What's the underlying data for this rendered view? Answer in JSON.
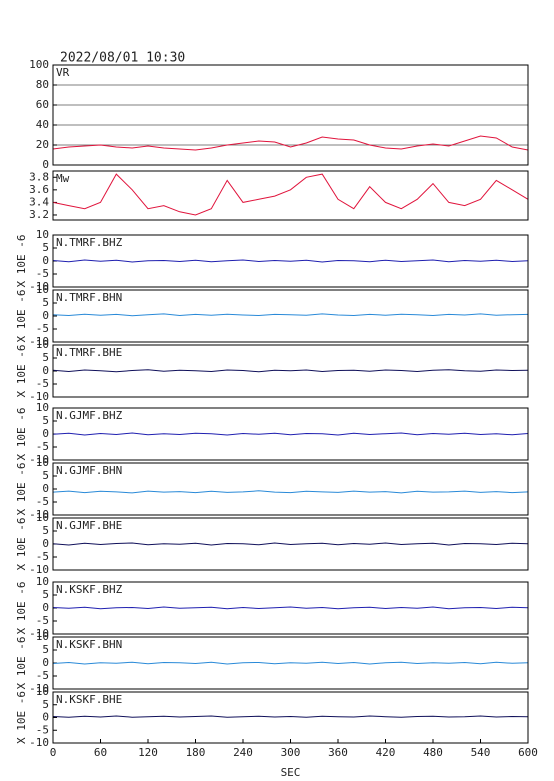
{
  "chart_data": [
    {
      "type": "line",
      "title": "2022/08/01 10:30",
      "label": "VR",
      "color": "#e0143c",
      "grid": true,
      "x": [
        0,
        20,
        40,
        60,
        80,
        100,
        120,
        140,
        160,
        180,
        200,
        220,
        240,
        260,
        280,
        300,
        320,
        340,
        360,
        380,
        400,
        420,
        440,
        460,
        480,
        500,
        520,
        540,
        560,
        580,
        600
      ],
      "values": [
        16,
        18,
        19,
        20,
        18,
        17,
        19,
        17,
        16,
        15,
        17,
        20,
        22,
        24,
        23,
        18,
        22,
        28,
        26,
        25,
        20,
        17,
        16,
        19,
        21,
        19,
        24,
        29,
        27,
        18,
        15
      ],
      "xlim": [
        0,
        600
      ],
      "ylim": [
        0,
        100
      ],
      "yticks": [
        0,
        20,
        40,
        60,
        80,
        100
      ]
    },
    {
      "type": "line",
      "label": "Mw",
      "color": "#e0143c",
      "x": [
        0,
        20,
        40,
        60,
        80,
        100,
        120,
        140,
        160,
        180,
        200,
        220,
        240,
        260,
        280,
        300,
        320,
        340,
        360,
        380,
        400,
        420,
        440,
        460,
        480,
        500,
        520,
        540,
        560,
        580,
        600
      ],
      "values": [
        3.4,
        3.35,
        3.3,
        3.4,
        3.85,
        3.6,
        3.3,
        3.35,
        3.25,
        3.2,
        3.3,
        3.75,
        3.4,
        3.45,
        3.5,
        3.6,
        3.8,
        3.85,
        3.45,
        3.3,
        3.65,
        3.4,
        3.3,
        3.45,
        3.7,
        3.4,
        3.35,
        3.45,
        3.75,
        3.6,
        3.45
      ],
      "xlim": [
        0,
        600
      ],
      "ylim": [
        3.12,
        3.9
      ],
      "yticks": [
        3.2,
        3.4,
        3.6,
        3.8
      ]
    },
    {
      "type": "line",
      "label": "N.TMRF.BHZ",
      "ylabel": "X 10E -6",
      "color": "#2020b0",
      "x": [
        0,
        20,
        40,
        60,
        80,
        100,
        120,
        140,
        160,
        180,
        200,
        220,
        240,
        260,
        280,
        300,
        320,
        340,
        360,
        380,
        400,
        420,
        440,
        460,
        480,
        500,
        520,
        540,
        560,
        580,
        600
      ],
      "values": [
        0.2,
        -0.3,
        0.4,
        -0.1,
        0.3,
        -0.4,
        0.1,
        0.2,
        -0.2,
        0.3,
        -0.3,
        0.1,
        0.4,
        -0.2,
        0.2,
        -0.1,
        0.3,
        -0.4,
        0.2,
        0.1,
        -0.3,
        0.3,
        -0.2,
        0.1,
        0.4,
        -0.3,
        0.2,
        -0.1,
        0.3,
        -0.2,
        0.1
      ],
      "xlim": [
        0,
        600
      ],
      "ylim": [
        -10,
        10
      ],
      "yticks": [
        -10,
        -5,
        0,
        5,
        10
      ]
    },
    {
      "type": "line",
      "label": "N.TMRF.BHN",
      "ylabel": "X 10E -6",
      "color": "#2a8ad8",
      "x": [
        0,
        20,
        40,
        60,
        80,
        100,
        120,
        140,
        160,
        180,
        200,
        220,
        240,
        260,
        280,
        300,
        320,
        340,
        360,
        380,
        400,
        420,
        440,
        460,
        480,
        500,
        520,
        540,
        560,
        580,
        600
      ],
      "values": [
        0.5,
        0.2,
        0.7,
        0.3,
        0.6,
        0.1,
        0.5,
        0.8,
        0.2,
        0.6,
        0.3,
        0.7,
        0.4,
        0.2,
        0.6,
        0.5,
        0.3,
        0.8,
        0.4,
        0.2,
        0.6,
        0.3,
        0.7,
        0.5,
        0.2,
        0.6,
        0.4,
        0.8,
        0.3,
        0.5,
        0.6
      ],
      "xlim": [
        0,
        600
      ],
      "ylim": [
        -10,
        10
      ],
      "yticks": [
        -10,
        -5,
        0,
        5,
        10
      ]
    },
    {
      "type": "line",
      "label": "N.TMRF.BHE",
      "ylabel": "X 10E -6",
      "color": "#10105a",
      "x": [
        0,
        20,
        40,
        60,
        80,
        100,
        120,
        140,
        160,
        180,
        200,
        220,
        240,
        260,
        280,
        300,
        320,
        340,
        360,
        380,
        400,
        420,
        440,
        460,
        480,
        500,
        520,
        540,
        560,
        580,
        600
      ],
      "values": [
        0.3,
        -0.2,
        0.4,
        0.1,
        -0.3,
        0.2,
        0.5,
        -0.1,
        0.3,
        0.1,
        -0.2,
        0.4,
        0.2,
        -0.3,
        0.3,
        0.1,
        0.4,
        -0.2,
        0.2,
        0.3,
        -0.1,
        0.4,
        0.2,
        -0.2,
        0.3,
        0.5,
        0.1,
        -0.1,
        0.4,
        0.2,
        0.3
      ],
      "xlim": [
        0,
        600
      ],
      "ylim": [
        -10,
        10
      ],
      "yticks": [
        -10,
        -5,
        0,
        5,
        10
      ]
    },
    {
      "type": "line",
      "label": "N.GJMF.BHZ",
      "ylabel": "X 10E -6",
      "color": "#2020b0",
      "x": [
        0,
        20,
        40,
        60,
        80,
        100,
        120,
        140,
        160,
        180,
        200,
        220,
        240,
        260,
        280,
        300,
        320,
        340,
        360,
        380,
        400,
        420,
        440,
        460,
        480,
        500,
        520,
        540,
        560,
        580,
        600
      ],
      "values": [
        -0.1,
        0.3,
        -0.4,
        0.2,
        -0.2,
        0.4,
        -0.3,
        0.1,
        -0.2,
        0.3,
        0.1,
        -0.4,
        0.2,
        -0.1,
        0.3,
        -0.3,
        0.2,
        0.1,
        -0.4,
        0.3,
        -0.2,
        0.1,
        0.4,
        -0.3,
        0.2,
        -0.1,
        0.3,
        -0.2,
        0.1,
        -0.3,
        0.2
      ],
      "xlim": [
        0,
        600
      ],
      "ylim": [
        -10,
        10
      ],
      "yticks": [
        -10,
        -5,
        0,
        5,
        10
      ]
    },
    {
      "type": "line",
      "label": "N.GJMF.BHN",
      "ylabel": "X 10E -6",
      "color": "#2a8ad8",
      "x": [
        0,
        20,
        40,
        60,
        80,
        100,
        120,
        140,
        160,
        180,
        200,
        220,
        240,
        260,
        280,
        300,
        320,
        340,
        360,
        380,
        400,
        420,
        440,
        460,
        480,
        500,
        520,
        540,
        560,
        580,
        600
      ],
      "values": [
        -1.2,
        -0.8,
        -1.4,
        -0.9,
        -1.1,
        -1.5,
        -0.8,
        -1.2,
        -1.0,
        -1.4,
        -0.9,
        -1.3,
        -1.1,
        -0.7,
        -1.2,
        -1.4,
        -0.9,
        -1.1,
        -1.3,
        -0.8,
        -1.2,
        -1.0,
        -1.5,
        -0.9,
        -1.2,
        -1.1,
        -0.8,
        -1.3,
        -1.0,
        -1.4,
        -1.1
      ],
      "xlim": [
        0,
        600
      ],
      "ylim": [
        -10,
        10
      ],
      "yticks": [
        -10,
        -5,
        0,
        5,
        10
      ]
    },
    {
      "type": "line",
      "label": "N.GJMF.BHE",
      "ylabel": "X 10E -6",
      "color": "#10105a",
      "x": [
        0,
        20,
        40,
        60,
        80,
        100,
        120,
        140,
        160,
        180,
        200,
        220,
        240,
        260,
        280,
        300,
        320,
        340,
        360,
        380,
        400,
        420,
        440,
        460,
        480,
        500,
        520,
        540,
        560,
        580,
        600
      ],
      "values": [
        0.1,
        -0.4,
        0.3,
        -0.2,
        0.2,
        0.4,
        -0.3,
        0.1,
        -0.1,
        0.3,
        -0.4,
        0.2,
        0.1,
        -0.3,
        0.4,
        -0.2,
        0.1,
        0.3,
        -0.3,
        0.2,
        -0.1,
        0.4,
        -0.2,
        0.1,
        0.3,
        -0.4,
        0.2,
        0.1,
        -0.2,
        0.3,
        0.1
      ],
      "xlim": [
        0,
        600
      ],
      "ylim": [
        -10,
        10
      ],
      "yticks": [
        -10,
        -5,
        0,
        5,
        10
      ]
    },
    {
      "type": "line",
      "label": "N.KSKF.BHZ",
      "ylabel": "X 10E -6",
      "color": "#2020b0",
      "x": [
        0,
        20,
        40,
        60,
        80,
        100,
        120,
        140,
        160,
        180,
        200,
        220,
        240,
        260,
        280,
        300,
        320,
        340,
        360,
        380,
        400,
        420,
        440,
        460,
        480,
        500,
        520,
        540,
        560,
        580,
        600
      ],
      "values": [
        0.2,
        -0.1,
        0.3,
        -0.3,
        0.1,
        0.2,
        -0.2,
        0.4,
        -0.1,
        0.1,
        0.3,
        -0.3,
        0.2,
        -0.2,
        0.1,
        0.4,
        -0.1,
        0.2,
        -0.3,
        0.1,
        0.3,
        -0.2,
        0.2,
        -0.1,
        0.4,
        -0.3,
        0.1,
        0.2,
        -0.2,
        0.3,
        0.1
      ],
      "xlim": [
        0,
        600
      ],
      "ylim": [
        -10,
        10
      ],
      "yticks": [
        -10,
        -5,
        0,
        5,
        10
      ]
    },
    {
      "type": "line",
      "label": "N.KSKF.BHN",
      "ylabel": "X 10E -6",
      "color": "#2a8ad8",
      "x": [
        0,
        20,
        40,
        60,
        80,
        100,
        120,
        140,
        160,
        180,
        200,
        220,
        240,
        260,
        280,
        300,
        320,
        340,
        360,
        380,
        400,
        420,
        440,
        460,
        480,
        500,
        520,
        540,
        560,
        580,
        600
      ],
      "values": [
        -0.2,
        0.2,
        -0.4,
        0.1,
        -0.1,
        0.3,
        -0.3,
        0.2,
        0.1,
        -0.2,
        0.3,
        -0.4,
        0.1,
        0.2,
        -0.3,
        0.1,
        -0.1,
        0.3,
        -0.2,
        0.2,
        -0.4,
        0.1,
        0.3,
        -0.2,
        0.1,
        -0.1,
        0.2,
        -0.3,
        0.3,
        -0.1,
        0.1
      ],
      "xlim": [
        0,
        600
      ],
      "ylim": [
        -10,
        10
      ],
      "yticks": [
        -10,
        -5,
        0,
        5,
        10
      ]
    },
    {
      "type": "line",
      "label": "N.KSKF.BHE",
      "ylabel": "X 10E -6",
      "color": "#10105a",
      "xlabel": "SEC",
      "x": [
        0,
        20,
        40,
        60,
        80,
        100,
        120,
        140,
        160,
        180,
        200,
        220,
        240,
        260,
        280,
        300,
        320,
        340,
        360,
        380,
        400,
        420,
        440,
        460,
        480,
        500,
        520,
        540,
        560,
        580,
        600
      ],
      "values": [
        0.4,
        0.1,
        0.5,
        0.2,
        0.6,
        0.1,
        0.3,
        0.5,
        0.2,
        0.4,
        0.6,
        0.1,
        0.3,
        0.5,
        0.2,
        0.4,
        0.1,
        0.5,
        0.3,
        0.2,
        0.6,
        0.3,
        0.1,
        0.4,
        0.5,
        0.2,
        0.3,
        0.6,
        0.2,
        0.4,
        0.3
      ],
      "xlim": [
        0,
        600
      ],
      "ylim": [
        -10,
        10
      ],
      "yticks": [
        -10,
        -5,
        0,
        5,
        10
      ],
      "xticks": [
        0,
        60,
        120,
        180,
        240,
        300,
        360,
        420,
        480,
        540,
        600
      ]
    }
  ]
}
